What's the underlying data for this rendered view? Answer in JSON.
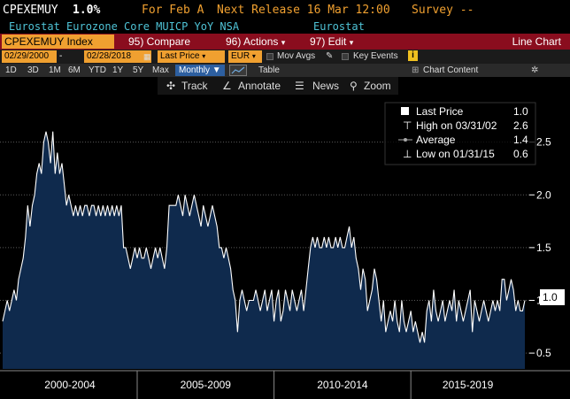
{
  "header": {
    "ticker": "CPEXEMUY",
    "last_value": "1.0%",
    "period": "For Feb A",
    "next_release": "Next Release 16 Mar 12:00",
    "survey": "Survey --",
    "description": "Eurostat Eurozone Core MUICP YoY NSA",
    "source": "Eurostat"
  },
  "toolbar": {
    "security": "CPEXEMUY Index",
    "compare": "95) Compare",
    "actions": "96) Actions",
    "edit": "97) Edit",
    "chart_type": "Line Chart"
  },
  "controls": {
    "start_date": "02/29/2000",
    "end_date": "02/28/2018",
    "field": "Last Price",
    "currency": "EUR",
    "mov_avgs": "Mov Avgs",
    "key_events": "Key Events",
    "info_icon": "i"
  },
  "timeframes": {
    "items": [
      "1D",
      "3D",
      "1M",
      "6M",
      "YTD",
      "1Y",
      "5Y",
      "Max"
    ],
    "frequency": "Monthly ▼",
    "table": "Table",
    "chart_content": "Chart Content"
  },
  "chart_tools": {
    "track": "Track",
    "annotate": "Annotate",
    "news": "News",
    "zoom": "Zoom"
  },
  "legend": {
    "last_label": "Last Price",
    "last_value": "1.0",
    "high_label": "High on 03/31/02",
    "high_value": "2.6",
    "avg_label": "Average",
    "avg_value": "1.4",
    "low_label": "Low on 01/31/15",
    "low_value": "0.6"
  },
  "chart_data": {
    "type": "area",
    "title": "",
    "xlabel": "",
    "ylabel": "",
    "ylim": [
      0.35,
      2.95
    ],
    "x_range": [
      "2000-02",
      "2018-02"
    ],
    "y_ticks": [
      0.5,
      1.0,
      1.5,
      2.0,
      2.5
    ],
    "period_labels": [
      "2000-2004",
      "2005-2009",
      "2010-2014",
      "2015-2019"
    ],
    "current_value_label": "1.0",
    "series": [
      {
        "values": [
          0.8,
          0.9,
          1.0,
          0.9,
          1.0,
          1.1,
          1.0,
          1.2,
          1.3,
          1.4,
          1.6,
          1.9,
          1.7,
          1.9,
          2.0,
          2.2,
          2.3,
          2.2,
          2.5,
          2.6,
          2.5,
          2.3,
          2.6,
          2.2,
          2.4,
          2.2,
          2.3,
          2.1,
          1.9,
          2.0,
          1.9,
          1.8,
          1.9,
          1.8,
          1.9,
          1.8,
          1.9,
          1.9,
          1.8,
          1.9,
          1.9,
          1.8,
          1.9,
          1.8,
          1.9,
          1.8,
          1.9,
          1.8,
          1.9,
          1.8,
          1.9,
          1.8,
          1.9,
          1.5,
          1.5,
          1.4,
          1.3,
          1.4,
          1.5,
          1.4,
          1.5,
          1.4,
          1.4,
          1.5,
          1.4,
          1.3,
          1.4,
          1.5,
          1.4,
          1.5,
          1.4,
          1.3,
          1.5,
          1.9,
          1.9,
          1.9,
          1.9,
          2.0,
          1.9,
          1.8,
          2.0,
          1.9,
          1.8,
          1.9,
          2.0,
          1.9,
          1.8,
          1.7,
          1.9,
          1.8,
          1.7,
          1.8,
          1.9,
          1.8,
          1.7,
          1.5,
          1.5,
          1.4,
          1.5,
          1.4,
          1.3,
          1.1,
          1.0,
          0.7,
          1.0,
          1.1,
          1.0,
          0.9,
          1.0,
          1.0,
          1.0,
          1.1,
          1.0,
          0.9,
          1.0,
          1.1,
          0.9,
          1.0,
          1.1,
          0.8,
          1.0,
          1.1,
          0.8,
          0.9,
          1.1,
          1.0,
          0.9,
          1.1,
          1.0,
          0.9,
          1.0,
          1.1,
          0.9,
          1.1,
          1.3,
          1.5,
          1.6,
          1.5,
          1.6,
          1.5,
          1.5,
          1.6,
          1.5,
          1.6,
          1.5,
          1.5,
          1.6,
          1.5,
          1.6,
          1.5,
          1.5,
          1.6,
          1.7,
          1.5,
          1.6,
          1.4,
          1.3,
          1.1,
          1.3,
          1.2,
          0.9,
          1.0,
          1.1,
          1.3,
          1.2,
          1.0,
          0.8,
          1.0,
          0.7,
          0.8,
          0.9,
          0.8,
          1.0,
          0.8,
          0.7,
          1.0,
          0.8,
          0.7,
          0.8,
          0.9,
          0.7,
          0.8,
          0.7,
          0.6,
          0.7,
          0.6,
          0.9,
          1.0,
          0.8,
          1.1,
          0.9,
          0.8,
          0.9,
          1.0,
          0.8,
          0.9,
          1.0,
          0.9,
          1.1,
          0.8,
          1.0,
          0.9,
          0.8,
          0.9,
          1.0,
          1.1,
          0.7,
          1.0,
          0.9,
          0.8,
          0.9,
          1.0,
          0.9,
          0.8,
          0.9,
          1.0,
          0.9,
          1.0,
          0.9,
          1.2,
          1.2,
          1.0,
          1.1,
          1.2,
          1.1,
          0.9,
          1.0,
          0.9,
          0.9,
          1.0
        ]
      }
    ]
  },
  "colors": {
    "background": "#000000",
    "area_fill": "#0f2a4d",
    "line": "#ffffff",
    "header_orange": "#f0a030",
    "header_cyan": "#4fc3d6",
    "title_bar": "#8a0d1e",
    "active_blue": "#2d5fa0"
  }
}
